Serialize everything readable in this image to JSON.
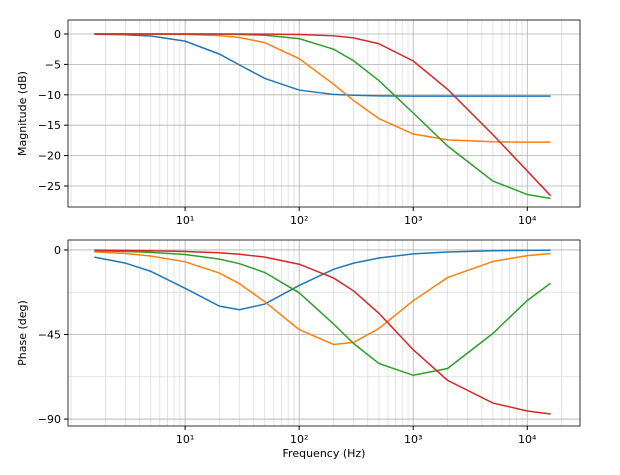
{
  "chart_data": [
    {
      "type": "line",
      "ylabel": "Magnitude (dB)",
      "log_x": true,
      "grid": true,
      "x": [
        1.6,
        3,
        5,
        10,
        20,
        30,
        50,
        100,
        200,
        300,
        500,
        1000,
        2000,
        5000,
        10000,
        16000
      ],
      "xlim": [
        0.94,
        29000
      ],
      "xticks": [
        {
          "value": 10,
          "label": "10¹"
        },
        {
          "value": 100,
          "label": "10²"
        },
        {
          "value": 1000,
          "label": "10³"
        },
        {
          "value": 10000,
          "label": "10⁴"
        }
      ],
      "xminorticks": [
        1,
        2,
        3,
        4,
        5,
        6,
        7,
        8,
        9,
        20,
        30,
        40,
        50,
        60,
        70,
        80,
        90,
        200,
        300,
        400,
        500,
        600,
        700,
        800,
        900,
        2000,
        3000,
        4000,
        5000,
        6000,
        7000,
        8000,
        9000,
        20000
      ],
      "ylim": [
        -28.45,
        2.3
      ],
      "yticks": [
        0,
        {
          "value": -5,
          "label": "−5"
        },
        {
          "value": -10,
          "label": "−10"
        },
        {
          "value": -15,
          "label": "−15"
        },
        {
          "value": -20,
          "label": "−20"
        },
        {
          "value": -25,
          "label": "−25"
        }
      ],
      "yminorticks": [],
      "series": [
        {
          "color": "#1f77b4",
          "values": [
            -0.04,
            -0.13,
            -0.33,
            -1.18,
            -3.31,
            -5.1,
            -7.31,
            -9.22,
            -9.94,
            -10.08,
            -10.17,
            -10.21,
            -10.22,
            -10.22,
            -10.22,
            -10.22
          ]
        },
        {
          "color": "#ff7f0e",
          "values": [
            0,
            -0.01,
            -0.02,
            -0.07,
            -0.26,
            -0.57,
            -1.43,
            -4.06,
            -8.25,
            -10.95,
            -13.92,
            -16.45,
            -17.41,
            -17.73,
            -17.78,
            -17.79
          ]
        },
        {
          "color": "#2ca02c",
          "values": [
            0,
            0,
            0,
            -0.01,
            -0.03,
            -0.08,
            -0.2,
            -0.77,
            -2.5,
            -4.4,
            -7.66,
            -12.99,
            -18.42,
            -24.18,
            -26.4,
            -27.04
          ]
        },
        {
          "color": "#d62728",
          "values": [
            0,
            0,
            0,
            0,
            0,
            -0.01,
            -0.02,
            -0.08,
            -0.3,
            -0.64,
            -1.6,
            -4.44,
            -9.09,
            -16.57,
            -22.52,
            -26.59
          ]
        }
      ]
    },
    {
      "type": "line",
      "ylabel": "Phase (deg)",
      "xlabel": "Frequency (Hz)",
      "log_x": true,
      "grid": true,
      "x": [
        1.6,
        3,
        5,
        10,
        20,
        30,
        50,
        100,
        200,
        300,
        500,
        1000,
        2000,
        5000,
        10000,
        16000
      ],
      "xlim": [
        0.94,
        29000
      ],
      "xticks": [
        {
          "value": 10,
          "label": "10¹"
        },
        {
          "value": 100,
          "label": "10²"
        },
        {
          "value": 1000,
          "label": "10³"
        },
        {
          "value": 10000,
          "label": "10⁴"
        }
      ],
      "xminorticks": [
        1,
        2,
        3,
        4,
        5,
        6,
        7,
        8,
        9,
        20,
        30,
        40,
        50,
        60,
        70,
        80,
        90,
        200,
        300,
        400,
        500,
        600,
        700,
        800,
        900,
        2000,
        3000,
        4000,
        5000,
        6000,
        7000,
        8000,
        9000,
        20000
      ],
      "ylim": [
        -93.7,
        5.3
      ],
      "yticks": [
        0,
        {
          "value": -45,
          "label": "−45"
        },
        {
          "value": -90,
          "label": "−90"
        }
      ],
      "yminorticks": [
        -22.5,
        -67.5
      ],
      "series": [
        {
          "color": "#1f77b4",
          "values": [
            -3.8,
            -7.0,
            -11.4,
            -20.4,
            -29.9,
            -31.8,
            -28.8,
            -18.9,
            -10.3,
            -7.0,
            -4.3,
            -2.1,
            -1.1,
            -0.4,
            -0.2,
            -0.1
          ]
        },
        {
          "color": "#ff7f0e",
          "values": [
            -1.0,
            -1.9,
            -3.2,
            -6.3,
            -12.3,
            -18.0,
            -27.6,
            -42.4,
            -50.3,
            -49.2,
            -41.8,
            -27.0,
            -14.7,
            -6.1,
            -3.0,
            -1.9
          ]
        },
        {
          "color": "#2ca02c",
          "values": [
            -0.4,
            -0.8,
            -1.3,
            -2.4,
            -4.9,
            -7.3,
            -12.0,
            -22.8,
            -39.4,
            -49.8,
            -60.4,
            -66.7,
            -63.1,
            -44.4,
            -26.9,
            -17.7
          ]
        },
        {
          "color": "#d62728",
          "values": [
            -0.1,
            -0.2,
            -0.4,
            -0.8,
            -1.5,
            -2.3,
            -3.8,
            -7.6,
            -14.9,
            -21.8,
            -33.7,
            -53.1,
            -69.4,
            -81.5,
            -85.7,
            -87.3
          ]
        }
      ]
    }
  ]
}
